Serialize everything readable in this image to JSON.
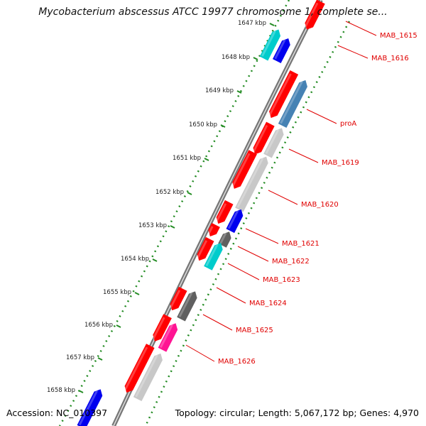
{
  "title": "Mycobacterium abscessus ATCC 19977 chromosome 1, complete se...",
  "footer": {
    "accession": "Accession: NC_010397",
    "topology": "Topology: circular; Length: 5,067,172 bp; Genes: 4,970"
  },
  "ticks": [
    "1647 kbp",
    "1648 kbp",
    "1649 kbp",
    "1650 kbp",
    "1651 kbp",
    "1652 kbp",
    "1653 kbp",
    "1654 kbp",
    "1655 kbp",
    "1656 kbp",
    "1657 kbp",
    "1658 kbp"
  ],
  "gene_labels": [
    "MAB_1615",
    "MAB_1616",
    "proA",
    "MAB_1619",
    "MAB_1620",
    "MAB_1621",
    "MAB_1622",
    "MAB_1623",
    "MAB_1624",
    "MAB_1625",
    "MAB_1626"
  ],
  "colors": {
    "cds_red": "#ff0000",
    "backbone": "#777777",
    "blue": "#0000ee",
    "steel_blue": "#4682b4",
    "cyan": "#00cccc",
    "gray_light": "#c8c8c8",
    "gray_dark": "#606060",
    "pink": "#ff1493",
    "green_ticks": "#228b22",
    "label_red": "#e00000"
  }
}
